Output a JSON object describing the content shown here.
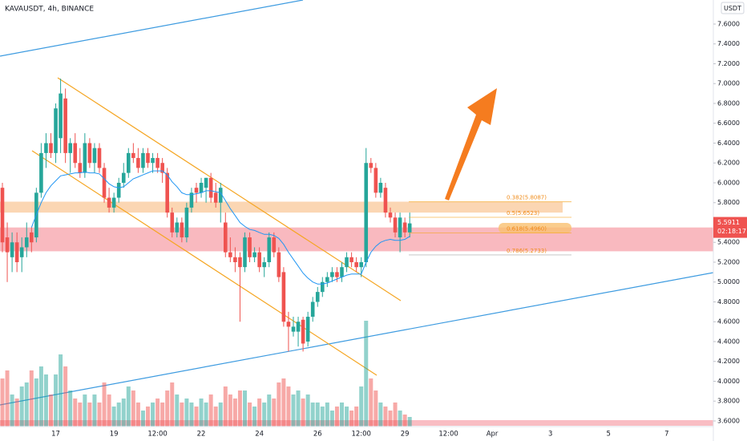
{
  "chart_data": {
    "type": "candlestick",
    "title": "KAVAUSDT, 4h, BINANCE",
    "currency": "USDT",
    "countdown": "02:18:17",
    "up_color": "#26a69a",
    "down_color": "#ef5350",
    "categories": [
      null,
      null,
      null,
      null,
      null,
      null,
      null,
      null,
      null,
      null,
      null,
      "17",
      null,
      null,
      null,
      null,
      null,
      null,
      null,
      null,
      null,
      null,
      null,
      "19",
      null,
      null,
      null,
      null,
      null,
      null,
      null,
      null,
      "12:00",
      null,
      null,
      null,
      null,
      null,
      null,
      null,
      null,
      "22",
      null,
      null,
      null,
      null,
      null,
      null,
      null,
      null,
      null,
      null,
      null,
      "24",
      null,
      null,
      null,
      null,
      null,
      null,
      null,
      null,
      null,
      null,
      null,
      "26",
      null,
      null,
      null,
      null,
      null,
      null,
      null,
      null,
      "12:00",
      null,
      null,
      null,
      null,
      null,
      null,
      null,
      null,
      "29",
      null,
      null,
      null,
      null,
      null,
      null,
      null,
      null,
      "12:00",
      null,
      null,
      null,
      null,
      null,
      null,
      null,
      null,
      "Apr",
      null,
      null,
      null,
      null,
      null,
      null,
      null,
      null,
      null,
      null,
      null,
      "3",
      null,
      null,
      null,
      null,
      null,
      null,
      null,
      null,
      null,
      null,
      null,
      "5",
      null,
      null,
      null,
      null,
      null,
      null,
      null,
      null,
      null,
      null,
      null,
      "7"
    ],
    "ohlc": [
      [
        5.95,
        6.0,
        5.3,
        5.4
      ],
      [
        5.45,
        5.6,
        5.0,
        5.3
      ],
      [
        5.25,
        5.5,
        5.1,
        5.4
      ],
      [
        5.4,
        5.5,
        5.1,
        5.2
      ],
      [
        5.25,
        5.45,
        5.1,
        5.35
      ],
      [
        5.35,
        5.6,
        5.25,
        5.45
      ],
      [
        5.5,
        5.55,
        5.3,
        5.4
      ],
      [
        5.45,
        5.95,
        5.4,
        5.9
      ],
      [
        5.9,
        6.4,
        5.85,
        6.3
      ],
      [
        6.3,
        6.5,
        6.15,
        6.4
      ],
      [
        6.4,
        6.5,
        6.25,
        6.3
      ],
      [
        6.3,
        6.8,
        6.2,
        6.75
      ],
      [
        6.45,
        7.05,
        6.3,
        6.9
      ],
      [
        6.85,
        6.95,
        6.2,
        6.3
      ],
      [
        6.3,
        6.45,
        6.1,
        6.4
      ],
      [
        6.4,
        6.5,
        6.15,
        6.2
      ],
      [
        6.2,
        6.35,
        6.05,
        6.1
      ],
      [
        6.1,
        6.5,
        6.05,
        6.4
      ],
      [
        6.4,
        6.45,
        6.15,
        6.2
      ],
      [
        6.2,
        6.4,
        6.1,
        6.35
      ],
      [
        6.35,
        6.4,
        6.1,
        6.15
      ],
      [
        6.15,
        6.2,
        5.8,
        5.85
      ],
      [
        5.85,
        5.95,
        5.7,
        5.75
      ],
      [
        5.75,
        5.9,
        5.7,
        5.85
      ],
      [
        5.85,
        6.05,
        5.8,
        6.0
      ],
      [
        6.0,
        6.2,
        5.95,
        6.1
      ],
      [
        6.1,
        6.35,
        6.05,
        6.3
      ],
      [
        6.3,
        6.4,
        6.2,
        6.25
      ],
      [
        6.25,
        6.35,
        6.1,
        6.15
      ],
      [
        6.15,
        6.35,
        6.1,
        6.3
      ],
      [
        6.3,
        6.35,
        6.15,
        6.2
      ],
      [
        6.2,
        6.3,
        6.1,
        6.25
      ],
      [
        6.25,
        6.3,
        6.1,
        6.15
      ],
      [
        6.2,
        6.25,
        6.0,
        6.1
      ],
      [
        6.1,
        6.15,
        5.65,
        5.7
      ],
      [
        5.7,
        5.75,
        5.45,
        5.5
      ],
      [
        5.5,
        5.65,
        5.45,
        5.6
      ],
      [
        5.6,
        5.65,
        5.4,
        5.45
      ],
      [
        5.45,
        5.8,
        5.4,
        5.75
      ],
      [
        5.75,
        5.95,
        5.7,
        5.9
      ],
      [
        5.95,
        6.0,
        5.8,
        5.9
      ],
      [
        5.9,
        6.05,
        5.85,
        6.0
      ],
      [
        5.95,
        6.05,
        5.8,
        6.05
      ],
      [
        6.05,
        6.1,
        5.8,
        5.85
      ],
      [
        5.9,
        6.0,
        5.75,
        5.8
      ],
      [
        5.8,
        6.0,
        5.6,
        5.95
      ],
      [
        5.6,
        5.7,
        5.25,
        5.3
      ],
      [
        5.3,
        5.45,
        5.2,
        5.25
      ],
      [
        5.25,
        5.35,
        5.1,
        5.2
      ],
      [
        5.25,
        5.3,
        4.6,
        5.15
      ],
      [
        5.15,
        5.5,
        5.1,
        5.45
      ],
      [
        5.45,
        5.5,
        5.2,
        5.25
      ],
      [
        5.25,
        5.35,
        5.2,
        5.3
      ],
      [
        5.3,
        5.35,
        5.1,
        5.15
      ],
      [
        5.15,
        5.25,
        5.05,
        5.2
      ],
      [
        5.2,
        5.5,
        5.15,
        5.45
      ],
      [
        5.45,
        5.5,
        5.25,
        5.3
      ],
      [
        5.3,
        5.35,
        5.0,
        5.05
      ],
      [
        5.1,
        5.15,
        4.55,
        4.6
      ],
      [
        4.6,
        4.7,
        4.3,
        4.55
      ],
      [
        4.5,
        4.65,
        4.45,
        4.55
      ],
      [
        4.5,
        4.65,
        4.35,
        4.6
      ],
      [
        4.62,
        4.65,
        4.3,
        4.38
      ],
      [
        4.4,
        4.7,
        4.35,
        4.65
      ],
      [
        4.65,
        4.85,
        4.6,
        4.8
      ],
      [
        4.8,
        4.95,
        4.75,
        4.9
      ],
      [
        4.9,
        5.05,
        4.85,
        5.0
      ],
      [
        5.0,
        5.1,
        4.95,
        5.05
      ],
      [
        5.05,
        5.15,
        5.0,
        5.1
      ],
      [
        5.1,
        5.15,
        5.0,
        5.05
      ],
      [
        5.05,
        5.2,
        5.0,
        5.15
      ],
      [
        5.15,
        5.3,
        5.1,
        5.25
      ],
      [
        5.25,
        5.3,
        5.15,
        5.2
      ],
      [
        5.2,
        5.25,
        5.1,
        5.15
      ],
      [
        5.15,
        5.25,
        5.05,
        5.2
      ],
      [
        5.2,
        6.35,
        5.15,
        6.2
      ],
      [
        6.2,
        6.25,
        6.1,
        6.15
      ],
      [
        6.15,
        6.2,
        5.85,
        5.9
      ],
      [
        5.9,
        6.05,
        5.85,
        6.0
      ],
      [
        5.95,
        6.0,
        5.65,
        5.7
      ],
      [
        5.7,
        5.75,
        5.6,
        5.65
      ],
      [
        5.65,
        5.7,
        5.45,
        5.5
      ],
      [
        5.45,
        5.7,
        5.3,
        5.65
      ],
      [
        5.6,
        5.65,
        5.45,
        5.5
      ],
      [
        5.5,
        5.7,
        5.45,
        5.5911
      ],
      null,
      null,
      null,
      null,
      null,
      null,
      null,
      null,
      null,
      null,
      null,
      null,
      null,
      null,
      null,
      null,
      null,
      null,
      null,
      null,
      null,
      null,
      null,
      null,
      null,
      null,
      null,
      null,
      null,
      null,
      null,
      null,
      null,
      null,
      null,
      null,
      null,
      null,
      null,
      null,
      null,
      null,
      null,
      null,
      null,
      null,
      null,
      null,
      null,
      null,
      null,
      null,
      null
    ],
    "volume": [
      60,
      70,
      40,
      35,
      50,
      55,
      70,
      60,
      75,
      65,
      40,
      65,
      90,
      75,
      45,
      35,
      30,
      40,
      30,
      40,
      30,
      55,
      40,
      25,
      30,
      35,
      50,
      45,
      30,
      20,
      25,
      30,
      35,
      30,
      45,
      55,
      40,
      30,
      35,
      30,
      25,
      35,
      30,
      40,
      25,
      30,
      50,
      40,
      35,
      45,
      45,
      30,
      25,
      35,
      30,
      40,
      35,
      55,
      60,
      50,
      40,
      45,
      35,
      40,
      30,
      30,
      25,
      30,
      20,
      25,
      30,
      25,
      20,
      25,
      50,
      132,
      60,
      45,
      30,
      25,
      20,
      30,
      20,
      15,
      12,
      null,
      null,
      null,
      null,
      null,
      null,
      null,
      null,
      null,
      null,
      null,
      null,
      null,
      null,
      null,
      null,
      null,
      null,
      null,
      null,
      null,
      null,
      null,
      null,
      null,
      null,
      null,
      null,
      null,
      null,
      null,
      null,
      null,
      null,
      null,
      null,
      null,
      null,
      null,
      null,
      null,
      null,
      null,
      null,
      null,
      null,
      null,
      null,
      null,
      null,
      null,
      null,
      null
    ],
    "volume_ylim": [
      0,
      300
    ],
    "ma": {
      "color": "#2196f3",
      "values": [
        null,
        null,
        null,
        null,
        null,
        null,
        5.55,
        5.68,
        5.8,
        5.9,
        5.97,
        6.02,
        6.07,
        6.08,
        6.09,
        6.1,
        6.1,
        6.11,
        6.1,
        6.1,
        6.09,
        6.04,
        5.99,
        5.96,
        5.95,
        5.96,
        6.0,
        6.04,
        6.06,
        6.08,
        6.1,
        6.12,
        6.12,
        6.12,
        6.08,
        6.01,
        5.96,
        5.9,
        5.88,
        5.88,
        5.89,
        5.9,
        5.92,
        5.92,
        5.91,
        5.9,
        5.82,
        5.74,
        5.67,
        5.6,
        5.56,
        5.53,
        5.52,
        5.5,
        5.48,
        5.48,
        5.47,
        5.44,
        5.38,
        5.3,
        5.23,
        5.16,
        5.09,
        5.04,
        5.0,
        4.98,
        4.98,
        4.99,
        5.01,
        5.03,
        5.05,
        5.07,
        5.08,
        5.08,
        5.08,
        5.2,
        5.3,
        5.36,
        5.4,
        5.42,
        5.43,
        5.42,
        5.42,
        5.43,
        5.46,
        null,
        null,
        null,
        null,
        null,
        null,
        null,
        null,
        null,
        null,
        null,
        null,
        null,
        null,
        null,
        null,
        null,
        null,
        null,
        null,
        null,
        null,
        null,
        null,
        null,
        null,
        null,
        null,
        null,
        null,
        null,
        null,
        null,
        null,
        null,
        null,
        null,
        null,
        null,
        null,
        null,
        null,
        null,
        null,
        null,
        null,
        null,
        null,
        null,
        null,
        null,
        null,
        null
      ]
    },
    "ylim": [
      3.5434,
      7.8424
    ],
    "yticks": [
      {
        "value": 3.6,
        "label": "3.6000"
      },
      {
        "value": 3.8,
        "label": "3.8000"
      },
      {
        "value": 4.0,
        "label": "4.0000"
      },
      {
        "value": 4.2,
        "label": "4.2000"
      },
      {
        "value": 4.4,
        "label": "4.4000"
      },
      {
        "value": 4.6,
        "label": "4.6000"
      },
      {
        "value": 4.8,
        "label": "4.8000"
      },
      {
        "value": 5.0,
        "label": "5.0000"
      },
      {
        "value": 5.2,
        "label": "5.2000"
      },
      {
        "value": 5.4,
        "label": "5.4000"
      },
      {
        "value": 5.6,
        "label": "5.6000"
      },
      {
        "value": 5.8,
        "label": "5.8000"
      },
      {
        "value": 6.0,
        "label": "6.0000"
      },
      {
        "value": 6.2,
        "label": "6.2000"
      },
      {
        "value": 6.4,
        "label": "6.4000"
      },
      {
        "value": 6.6,
        "label": "6.6000"
      },
      {
        "value": 6.8,
        "label": "6.8000"
      },
      {
        "value": 7.0,
        "label": "7.0000"
      },
      {
        "value": 7.2,
        "label": "7.2000"
      },
      {
        "value": 7.4,
        "label": "7.4000"
      },
      {
        "value": 7.6,
        "label": "7.6000"
      }
    ],
    "zones": [
      {
        "from": 5.7,
        "to": 5.81,
        "color": "#f9c89a"
      },
      {
        "from": 5.31,
        "to": 5.55,
        "color": "#f7a1a9"
      }
    ],
    "fib_levels": [
      {
        "value": 5.8087,
        "label": "0.382(5.8087)"
      },
      {
        "value": 5.6523,
        "label": "0.5(5.6523)"
      },
      {
        "value": 5.496,
        "label": "0.618(5.4960)"
      },
      {
        "value": 5.2733,
        "label": "0.786(5.2733)"
      }
    ],
    "current_price": 5.5911
  }
}
